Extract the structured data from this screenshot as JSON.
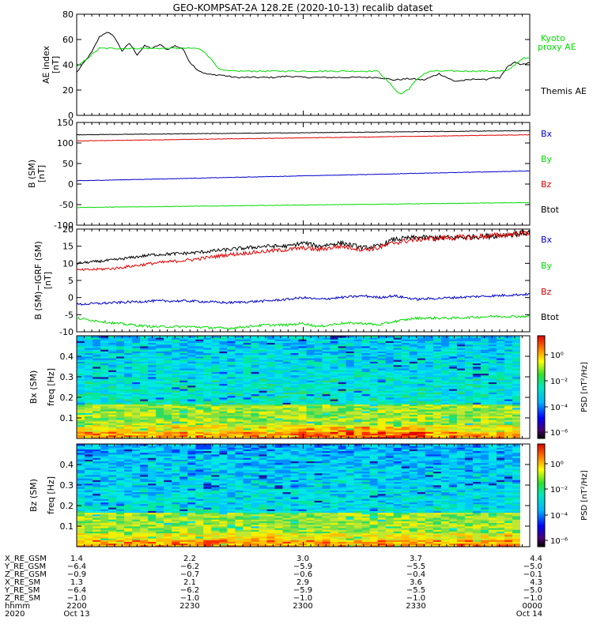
{
  "title": "GEO-KOMPSAT-2A 128.2E (2020-10-13) recalib dataset",
  "colors": {
    "black": "#000000",
    "red": "#e00000",
    "blue": "#0000cc",
    "green": "#00dd00"
  },
  "panels": {
    "ae": {
      "ylabel_main": "AE index",
      "ylabel_unit": "[nT]",
      "legend": [
        {
          "label": "Kyoto",
          "color": "#00dd00"
        },
        {
          "label": "proxy AE",
          "color": "#00dd00"
        },
        {
          "label": "Themis AE",
          "color": "#000000"
        }
      ]
    },
    "b": {
      "ylabel_main": "B (SM)",
      "ylabel_unit": "[nT]",
      "legend": [
        {
          "label": "Bx",
          "color": "#0000cc"
        },
        {
          "label": "By",
          "color": "#00dd00"
        },
        {
          "label": "Bz",
          "color": "#e00000"
        },
        {
          "label": "Btot",
          "color": "#000000"
        }
      ]
    },
    "dbigrf": {
      "ylabel_main": "B (SM)−IGRF (SM)",
      "ylabel_unit": "[nT]",
      "legend": [
        {
          "label": "Bx",
          "color": "#0000cc"
        },
        {
          "label": "By",
          "color": "#00dd00"
        },
        {
          "label": "Bz",
          "color": "#e00000"
        },
        {
          "label": "Btot",
          "color": "#000000"
        }
      ]
    },
    "bx_spec": {
      "ylabel_main": "Bx (SM)",
      "ylabel_unit": "freq [Hz]"
    },
    "bz_spec": {
      "ylabel_main": "Bz (SM)",
      "ylabel_unit": "freq [Hz]"
    },
    "colorbar": {
      "label": "PSD [nT²/Hz]",
      "ticks": [
        "10⁰",
        "10⁻²",
        "10⁻⁴",
        "10⁻⁶"
      ]
    }
  },
  "chart_data": [
    {
      "type": "line",
      "id": "ae",
      "ylabel": "AE index [nT]",
      "ylim": [
        0,
        80
      ],
      "yticks": [
        0,
        20,
        40,
        60,
        80
      ],
      "xlim": [
        0,
        60
      ],
      "series": [
        {
          "name": "Themis AE",
          "color": "#000000",
          "x": [
            0,
            1,
            2,
            3,
            4,
            5,
            6,
            7,
            8,
            9,
            10,
            11,
            12,
            13,
            14,
            15,
            16,
            17,
            18,
            19,
            20,
            21,
            22,
            23,
            24,
            26,
            28,
            30,
            32,
            34,
            36,
            38,
            40,
            42,
            44,
            46,
            48,
            50,
            52,
            53,
            54,
            55,
            56,
            57,
            58,
            59,
            60
          ],
          "y": [
            34,
            42,
            50,
            62,
            66,
            62,
            51,
            57,
            48,
            55,
            53,
            56,
            52,
            55,
            53,
            42,
            36,
            33,
            32,
            32,
            31,
            30,
            30,
            30,
            30,
            30,
            31,
            30,
            30,
            30,
            30,
            30,
            30,
            28,
            29,
            28,
            33,
            27,
            28,
            29,
            28,
            30,
            29,
            38,
            42,
            40,
            42
          ]
        },
        {
          "name": "Kyoto proxy AE",
          "color": "#00dd00",
          "x": [
            0,
            2,
            3,
            6,
            16,
            17,
            18,
            19,
            20,
            21,
            22,
            23,
            24,
            28,
            32,
            36,
            40,
            40.5,
            41,
            42,
            42.5,
            43,
            44,
            45,
            46,
            47,
            48,
            52,
            56,
            57,
            58,
            59,
            60
          ],
          "y": [
            38,
            48,
            53,
            53,
            53,
            50,
            43,
            36,
            35,
            35,
            35,
            35,
            35,
            35,
            35,
            35,
            35,
            31,
            28,
            22,
            18,
            17,
            21,
            28,
            33,
            35,
            35,
            35,
            35,
            35,
            40,
            45,
            45
          ]
        }
      ]
    },
    {
      "type": "line",
      "id": "b",
      "ylabel": "B (SM) [nT]",
      "ylim": [
        -100,
        150
      ],
      "yticks": [
        -100,
        -50,
        0,
        50,
        100,
        150
      ],
      "xlim": [
        0,
        60
      ],
      "series": [
        {
          "name": "Btot",
          "color": "#000000",
          "x": [
            0,
            60
          ],
          "y": [
            120,
            130
          ]
        },
        {
          "name": "Bz",
          "color": "#e00000",
          "x": [
            0,
            60
          ],
          "y": [
            105,
            120
          ]
        },
        {
          "name": "Bx",
          "color": "#0000cc",
          "x": [
            0,
            60
          ],
          "y": [
            8,
            32
          ]
        },
        {
          "name": "By",
          "color": "#00dd00",
          "x": [
            0,
            60
          ],
          "y": [
            -57,
            -45
          ]
        }
      ]
    },
    {
      "type": "line",
      "id": "dbigrf",
      "ylabel": "B (SM)−IGRF (SM) [nT]",
      "ylim": [
        -10,
        20
      ],
      "yticks": [
        -10,
        -5,
        0,
        5,
        10,
        15,
        20
      ],
      "xlim": [
        0,
        60
      ],
      "series": [
        {
          "name": "Btot",
          "color": "#000000",
          "x": [
            0,
            5,
            10,
            15,
            20,
            25,
            28,
            30,
            32,
            35,
            38,
            40,
            42,
            45,
            50,
            55,
            60
          ],
          "y": [
            10,
            11,
            12.5,
            13,
            14,
            15,
            15,
            16,
            15,
            16,
            14.5,
            15,
            17,
            17.5,
            17.5,
            18,
            19
          ]
        },
        {
          "name": "Bz",
          "color": "#e00000",
          "x": [
            0,
            5,
            10,
            15,
            20,
            25,
            28,
            30,
            32,
            35,
            38,
            40,
            42,
            45,
            50,
            55,
            60
          ],
          "y": [
            8,
            8.5,
            10,
            11,
            12.5,
            13.5,
            14,
            14.5,
            14,
            15,
            14,
            14.5,
            16,
            17,
            17.5,
            18,
            19
          ]
        },
        {
          "name": "Bx",
          "color": "#0000cc",
          "x": [
            0,
            5,
            10,
            15,
            20,
            25,
            28,
            30,
            32,
            35,
            38,
            40,
            42,
            45,
            50,
            55,
            60
          ],
          "y": [
            -2,
            -1.5,
            -1,
            -1,
            -1.5,
            -1,
            -0.5,
            0,
            -0.5,
            0,
            0.5,
            0,
            0.5,
            -0.5,
            0,
            0.5,
            1
          ]
        },
        {
          "name": "By",
          "color": "#00dd00",
          "x": [
            0,
            5,
            10,
            15,
            20,
            25,
            28,
            30,
            32,
            35,
            38,
            40,
            42,
            45,
            50,
            55,
            60
          ],
          "y": [
            -6,
            -7.5,
            -8.5,
            -8.5,
            -9,
            -8,
            -8,
            -7.5,
            -8.5,
            -7.5,
            -7.5,
            -8,
            -7,
            -6,
            -6,
            -5.5,
            -5.5
          ]
        }
      ]
    },
    {
      "type": "heatmap",
      "id": "bx_spec",
      "ylabel": "Bx (SM) freq [Hz]",
      "ylim": [
        0,
        0.5
      ],
      "yticks": [
        0.1,
        0.2,
        0.3,
        0.4
      ],
      "xlim": [
        0,
        60
      ],
      "colorbar": "PSD [nT²/Hz]"
    },
    {
      "type": "heatmap",
      "id": "bz_spec",
      "ylabel": "Bz (SM) freq [Hz]",
      "ylim": [
        0,
        0.5
      ],
      "yticks": [
        0.1,
        0.2,
        0.3,
        0.4
      ],
      "xlim": [
        0,
        60
      ],
      "colorbar": "PSD [nT²/Hz]"
    }
  ],
  "orbit_table": {
    "rows": [
      {
        "label": "X_RE_GSM",
        "values": [
          "1.4",
          "2.2",
          "3.0",
          "3.7",
          "4.4"
        ]
      },
      {
        "label": "Y_RE_GSM",
        "values": [
          "−6.4",
          "−6.2",
          "−5.9",
          "−5.5",
          "−5.0"
        ]
      },
      {
        "label": "Z_RE_GSM",
        "values": [
          "−0.9",
          "−0.7",
          "−0.6",
          "−0.4",
          "−0.1"
        ]
      },
      {
        "label": "X_RE_SM",
        "values": [
          "1.3",
          "2.1",
          "2.9",
          "3.6",
          "4.3"
        ]
      },
      {
        "label": "Y_RE_SM",
        "values": [
          "−6.4",
          "−6.2",
          "−5.9",
          "−5.5",
          "−5.0"
        ]
      },
      {
        "label": "Z_RE_SM",
        "values": [
          "−1.0",
          "−1.0",
          "−1.0",
          "−1.0",
          "−1.0"
        ]
      },
      {
        "label": "hhmm",
        "values": [
          "2200",
          "2230",
          "2300",
          "2330",
          "0000"
        ]
      },
      {
        "label": "2020",
        "values": [
          "Oct 13",
          "",
          "",
          "",
          "Oct 14"
        ]
      }
    ]
  }
}
